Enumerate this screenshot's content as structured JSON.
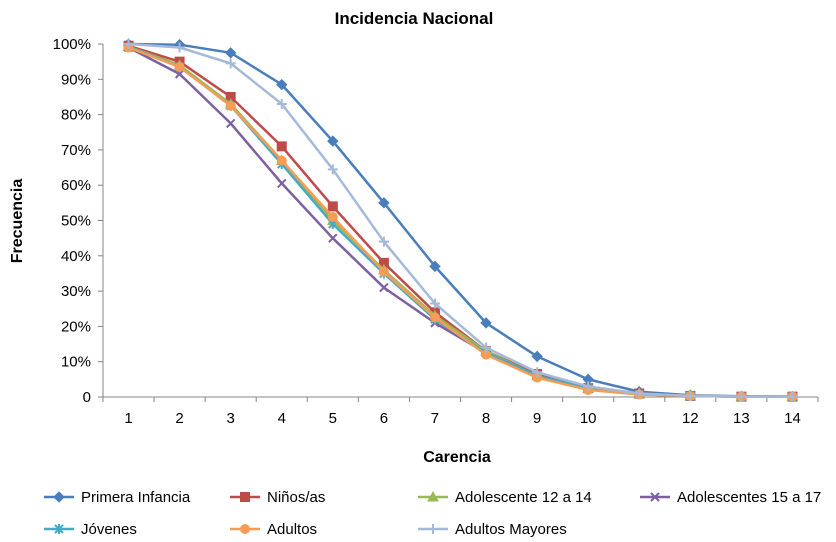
{
  "chart_data": {
    "type": "line",
    "title": "Incidencia Nacional",
    "xlabel": "Carencia",
    "ylabel": "Frecuencia",
    "x": [
      1,
      2,
      3,
      4,
      5,
      6,
      7,
      8,
      9,
      10,
      11,
      12,
      13,
      14
    ],
    "xticks": [
      "1",
      "2",
      "3",
      "4",
      "5",
      "6",
      "7",
      "8",
      "9",
      "10",
      "11",
      "12",
      "13",
      "14"
    ],
    "ylim": [
      0,
      100
    ],
    "yticks": [
      {
        "value": 0,
        "label": "0"
      },
      {
        "value": 10,
        "label": "10%"
      },
      {
        "value": 20,
        "label": "20%"
      },
      {
        "value": 30,
        "label": "30%"
      },
      {
        "value": 40,
        "label": "40%"
      },
      {
        "value": 50,
        "label": "50%"
      },
      {
        "value": 60,
        "label": "60%"
      },
      {
        "value": 70,
        "label": "70%"
      },
      {
        "value": 80,
        "label": "80%"
      },
      {
        "value": 90,
        "label": "90%"
      },
      {
        "value": 100,
        "label": "100%"
      }
    ],
    "grid": false,
    "legend_position": "bottom",
    "series": [
      {
        "name": "Primera Infancia",
        "color": "#4a7ebb",
        "marker": "diamond",
        "values": [
          100,
          99.8,
          97.5,
          88.5,
          72.5,
          55,
          37,
          21,
          11.5,
          5,
          1.5,
          0.5,
          0.2,
          0.1
        ]
      },
      {
        "name": "Niños/as",
        "color": "#be4b48",
        "marker": "square",
        "values": [
          99.5,
          95,
          85,
          71,
          54,
          38,
          24,
          13,
          6.5,
          2.5,
          1,
          0.3,
          0.1,
          0.1
        ]
      },
      {
        "name": "Adolescente 12 a 14",
        "color": "#98b954",
        "marker": "triangle",
        "values": [
          99.3,
          94,
          83,
          67,
          50,
          36,
          23,
          13,
          6,
          2.5,
          0.8,
          0.3,
          0.1,
          0.1
        ]
      },
      {
        "name": "Adolescentes 15 a 17",
        "color": "#7d60a0",
        "marker": "x",
        "values": [
          99,
          91.5,
          77.5,
          60.5,
          45,
          31,
          21,
          12.5,
          6,
          2.5,
          0.8,
          0.3,
          0.1,
          0.1
        ]
      },
      {
        "name": "Jóvenes",
        "color": "#46aac5",
        "marker": "star",
        "values": [
          99.2,
          93.5,
          82.5,
          66,
          49,
          35,
          22,
          12.5,
          6,
          2.5,
          0.8,
          0.3,
          0.1,
          0.1
        ]
      },
      {
        "name": "Adultos",
        "color": "#f59d56",
        "marker": "circle",
        "values": [
          99,
          93.5,
          82.5,
          67,
          51,
          35.5,
          22.5,
          12,
          5.5,
          2,
          0.7,
          0.3,
          0.1,
          0.1
        ]
      },
      {
        "name": "Adultos Mayores",
        "color": "#a5b9d9",
        "marker": "plus",
        "values": [
          100,
          99,
          94.5,
          83,
          64.5,
          44,
          26.5,
          14,
          7,
          3,
          1,
          0.3,
          0.1,
          0.1
        ]
      }
    ]
  }
}
